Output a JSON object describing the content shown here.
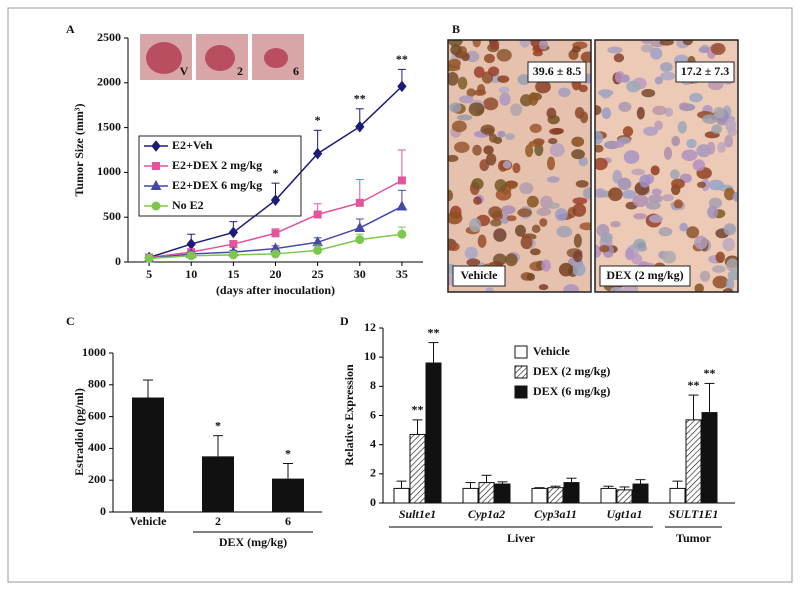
{
  "panel_labels": [
    "A",
    "B",
    "C",
    "D"
  ],
  "images": {
    "left_value": "39.6 ± 8.5",
    "left_label": "Vehicle",
    "right_value": "17.2 ± 7.3",
    "right_label": "DEX (2 mg/kg)"
  },
  "chart_data": [
    {
      "type": "line",
      "ylabel": "Tumor Size (mm³)",
      "xlabel": "(days after inoculation)",
      "x": [
        5,
        10,
        15,
        20,
        25,
        30,
        35
      ],
      "series": [
        {
          "name": "E2+Veh",
          "color": "#1c1c78",
          "marker": "diamond",
          "values": [
            50,
            200,
            330,
            690,
            1210,
            1510,
            1960
          ],
          "errors": [
            null,
            110,
            120,
            190,
            260,
            200,
            190
          ]
        },
        {
          "name": "E2+DEX 2 mg/kg",
          "color": "#e2559c",
          "marker": "square",
          "values": [
            50,
            110,
            200,
            320,
            530,
            660,
            910
          ],
          "errors": [
            null,
            20,
            30,
            50,
            120,
            260,
            340
          ]
        },
        {
          "name": "E2+DEX 6 mg/kg",
          "color": "#4747a8",
          "marker": "triangle",
          "values": [
            40,
            90,
            110,
            150,
            220,
            380,
            620
          ],
          "errors": [
            null,
            20,
            20,
            30,
            50,
            100,
            180
          ]
        },
        {
          "name": "No E2",
          "color": "#7cc84e",
          "marker": "circle",
          "values": [
            40,
            70,
            80,
            90,
            130,
            250,
            310
          ],
          "errors": [
            null,
            10,
            10,
            20,
            60,
            60,
            80
          ]
        }
      ],
      "annotations": [
        {
          "x": 20,
          "label": "*"
        },
        {
          "x": 25,
          "label": "*"
        },
        {
          "x": 30,
          "label": "**"
        },
        {
          "x": 35,
          "label": "**"
        }
      ],
      "inset_labels": [
        "V",
        "2",
        "6"
      ],
      "xlim": [
        2.5,
        37.5
      ],
      "xticks": [
        5,
        10,
        15,
        20,
        25,
        30,
        35
      ],
      "ylim": [
        0,
        2500
      ],
      "yticks": [
        0,
        500,
        1000,
        1500,
        2000,
        2500
      ]
    },
    {
      "type": "bar",
      "ylabel": "Estradiol (pg/ml)",
      "xlabel": "DEX (mg/kg)",
      "categories": [
        "Vehicle",
        "2",
        "6"
      ],
      "values": [
        720,
        350,
        210
      ],
      "errors": [
        110,
        130,
        95
      ],
      "color": "#111111",
      "annotations": [
        {
          "index": 1,
          "label": "*"
        },
        {
          "index": 2,
          "label": "*"
        }
      ],
      "ylim": [
        0,
        1000
      ],
      "yticks": [
        0,
        200,
        400,
        600,
        800,
        1000
      ]
    },
    {
      "type": "grouped_bar",
      "ylabel": "Relative Expression",
      "categories": [
        "Sult1e1",
        "Cyp1a2",
        "Cyp3a11",
        "Ugt1a1",
        "SULT1E1"
      ],
      "group_labels": [
        "Liver",
        "Tumor"
      ],
      "series": [
        {
          "name": "Vehicle",
          "color": "#ffffff",
          "values": [
            1,
            1,
            1,
            1,
            1
          ],
          "errors": [
            0.5,
            0.4,
            0.05,
            0.15,
            0.5
          ]
        },
        {
          "name": "DEX (2 mg/kg)",
          "color": "#ffffff",
          "hatch": true,
          "values": [
            4.7,
            1.4,
            1.05,
            0.9,
            5.7
          ],
          "errors": [
            1.0,
            0.5,
            0.1,
            0.2,
            1.7
          ]
        },
        {
          "name": "DEX (6 mg/kg)",
          "color": "#111111",
          "values": [
            9.6,
            1.3,
            1.4,
            1.3,
            6.2
          ],
          "errors": [
            1.4,
            0.15,
            0.3,
            0.3,
            2.0
          ]
        }
      ],
      "annotations": [
        {
          "series": 1,
          "index": 0,
          "label": "**"
        },
        {
          "series": 2,
          "index": 0,
          "label": "**"
        },
        {
          "series": 1,
          "index": 4,
          "label": "**"
        },
        {
          "series": 2,
          "index": 4,
          "label": "**"
        }
      ],
      "ylim": [
        0,
        12
      ],
      "yticks": [
        0,
        2,
        4,
        6,
        8,
        10,
        12
      ]
    }
  ]
}
